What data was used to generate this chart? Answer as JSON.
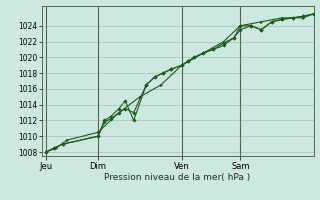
{
  "background_color": "#cce8e0",
  "grid_color": "#aabbb8",
  "line_color": "#1a5c1a",
  "marker_color": "#1a5c1a",
  "xlabel": "Pression niveau de la mer( hPa )",
  "ylim": [
    1007.5,
    1026.5
  ],
  "yticks": [
    1008,
    1010,
    1012,
    1014,
    1016,
    1018,
    1020,
    1022,
    1024
  ],
  "day_labels": [
    "Jeu",
    "Dim",
    "Ven",
    "Sam"
  ],
  "day_positions": [
    0.0,
    2.5,
    6.5,
    9.3
  ],
  "xlim": [
    -0.2,
    12.8
  ],
  "series1_x": [
    0.0,
    0.4,
    0.8,
    2.5,
    2.8,
    3.1,
    3.5,
    3.8,
    4.2,
    4.8,
    5.2,
    5.6,
    6.0,
    6.5,
    6.8,
    7.1,
    7.5,
    8.0,
    8.5,
    9.0,
    9.3,
    9.8,
    10.3,
    10.8,
    11.3,
    11.8,
    12.3,
    12.8
  ],
  "series1_y": [
    1008.0,
    1008.5,
    1009.0,
    1010.0,
    1011.8,
    1012.2,
    1013.0,
    1013.5,
    1013.0,
    1016.5,
    1017.5,
    1018.0,
    1018.5,
    1019.0,
    1019.5,
    1020.0,
    1020.5,
    1021.0,
    1021.5,
    1022.5,
    1023.5,
    1024.0,
    1023.5,
    1024.5,
    1024.8,
    1025.0,
    1025.2,
    1025.5
  ],
  "series2_x": [
    0.0,
    0.4,
    0.8,
    2.5,
    2.8,
    3.1,
    3.5,
    3.8,
    4.2,
    4.8,
    5.2,
    5.6,
    6.0,
    6.5,
    6.8,
    7.1,
    7.5,
    8.0,
    8.5,
    9.0,
    9.3,
    9.8,
    10.3,
    10.8,
    11.3,
    11.8,
    12.3,
    12.8
  ],
  "series2_y": [
    1008.0,
    1008.5,
    1009.0,
    1010.0,
    1012.0,
    1012.5,
    1013.5,
    1014.5,
    1012.0,
    1016.5,
    1017.5,
    1018.0,
    1018.5,
    1019.0,
    1019.5,
    1020.0,
    1020.5,
    1021.0,
    1021.8,
    1022.5,
    1024.0,
    1024.0,
    1023.5,
    1024.5,
    1024.8,
    1025.0,
    1025.2,
    1025.5
  ],
  "series3_x": [
    0.0,
    0.5,
    1.0,
    2.5,
    3.5,
    4.5,
    5.5,
    6.5,
    7.5,
    8.5,
    9.3,
    10.3,
    11.3,
    12.3,
    12.8
  ],
  "series3_y": [
    1008.0,
    1008.5,
    1009.5,
    1010.5,
    1013.0,
    1015.0,
    1016.5,
    1019.0,
    1020.5,
    1022.0,
    1024.0,
    1024.5,
    1025.0,
    1025.0,
    1025.5
  ]
}
